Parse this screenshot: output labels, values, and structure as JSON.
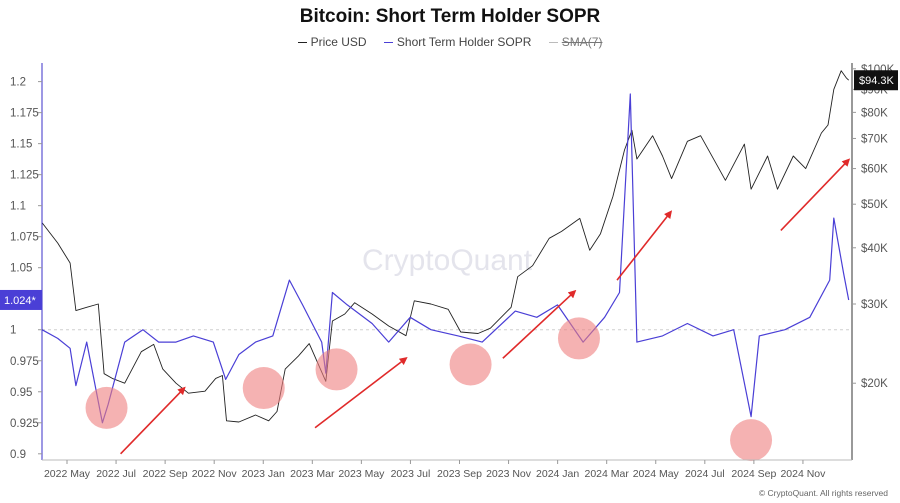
{
  "chart_data": {
    "type": "line",
    "title": "Bitcoin: Short Term Holder SOPR",
    "legend": [
      "Price USD",
      "Short Term Holder SOPR",
      "SMA(7)"
    ],
    "legend_placement": "top-center",
    "watermark": "CryptoQuant",
    "credit": "© CryptoQuant. All rights reserved",
    "x_ticks": [
      "2022 May",
      "2022 Jul",
      "2022 Sep",
      "2022 Nov",
      "2023 Jan",
      "2023 Mar",
      "2023 May",
      "2023 Jul",
      "2023 Sep",
      "2023 Nov",
      "2024 Jan",
      "2024 Mar",
      "2024 May",
      "2024 Jul",
      "2024 Sep",
      "2024 Nov"
    ],
    "x_range": [
      "2022-04-01",
      "2024-12-05"
    ],
    "y_left": {
      "ticks": [
        0.9,
        0.925,
        0.95,
        0.975,
        1,
        1.025,
        1.05,
        1.075,
        1.1,
        1.125,
        1.15,
        1.175,
        1.2
      ],
      "tick_labels": [
        "0.9",
        "0.925",
        "0.95",
        "0.975",
        "1",
        "1.025",
        "1.05",
        "1.075",
        "1.1",
        "1.125",
        "1.15",
        "1.175",
        "1.2"
      ],
      "range": [
        0.895,
        1.215
      ],
      "current_label": "1.024*"
    },
    "y_right": {
      "scale": "log",
      "ticks": [
        20000,
        30000,
        40000,
        50000,
        60000,
        70000,
        80000,
        90000,
        100000
      ],
      "tick_labels": [
        "$20K",
        "$30K",
        "$40K",
        "$50K",
        "$60K",
        "$70K",
        "$80K",
        "$90K",
        "$100K"
      ],
      "range": [
        13500,
        103000
      ],
      "current_label": "$94.3K"
    },
    "grid": false,
    "series": [
      {
        "name": "Price USD",
        "color": "#222222",
        "axis": "right",
        "points": [
          [
            "2022-04-01",
            45500
          ],
          [
            "2022-04-20",
            41000
          ],
          [
            "2022-05-05",
            37000
          ],
          [
            "2022-05-12",
            29000
          ],
          [
            "2022-05-25",
            29500
          ],
          [
            "2022-06-08",
            30000
          ],
          [
            "2022-06-15",
            21000
          ],
          [
            "2022-06-25",
            20500
          ],
          [
            "2022-07-10",
            20000
          ],
          [
            "2022-07-30",
            23500
          ],
          [
            "2022-08-14",
            24400
          ],
          [
            "2022-08-25",
            21500
          ],
          [
            "2022-09-10",
            20000
          ],
          [
            "2022-09-25",
            19000
          ],
          [
            "2022-10-15",
            19200
          ],
          [
            "2022-10-28",
            20500
          ],
          [
            "2022-11-05",
            20800
          ],
          [
            "2022-11-10",
            16500
          ],
          [
            "2022-11-25",
            16400
          ],
          [
            "2022-12-15",
            17000
          ],
          [
            "2022-12-31",
            16500
          ],
          [
            "2023-01-10",
            17300
          ],
          [
            "2023-01-20",
            21500
          ],
          [
            "2023-02-05",
            23000
          ],
          [
            "2023-02-18",
            24500
          ],
          [
            "2023-03-10",
            20200
          ],
          [
            "2023-03-18",
            27500
          ],
          [
            "2023-04-02",
            28500
          ],
          [
            "2023-04-14",
            30200
          ],
          [
            "2023-05-05",
            28500
          ],
          [
            "2023-05-25",
            26800
          ],
          [
            "2023-06-15",
            25500
          ],
          [
            "2023-06-25",
            30500
          ],
          [
            "2023-07-15",
            30000
          ],
          [
            "2023-08-05",
            29200
          ],
          [
            "2023-08-20",
            26000
          ],
          [
            "2023-09-10",
            25800
          ],
          [
            "2023-09-25",
            26500
          ],
          [
            "2023-10-20",
            29500
          ],
          [
            "2023-10-28",
            34500
          ],
          [
            "2023-11-15",
            36500
          ],
          [
            "2023-12-05",
            42000
          ],
          [
            "2023-12-20",
            43500
          ],
          [
            "2024-01-11",
            46500
          ],
          [
            "2024-01-23",
            39500
          ],
          [
            "2024-02-05",
            43000
          ],
          [
            "2024-02-20",
            52000
          ],
          [
            "2024-03-05",
            66000
          ],
          [
            "2024-03-14",
            73000
          ],
          [
            "2024-03-20",
            63000
          ],
          [
            "2024-04-08",
            71000
          ],
          [
            "2024-04-20",
            64000
          ],
          [
            "2024-05-01",
            57000
          ],
          [
            "2024-05-20",
            69000
          ],
          [
            "2024-06-05",
            71000
          ],
          [
            "2024-06-25",
            61000
          ],
          [
            "2024-07-05",
            56500
          ],
          [
            "2024-07-28",
            68000
          ],
          [
            "2024-08-05",
            54000
          ],
          [
            "2024-08-25",
            64000
          ],
          [
            "2024-09-06",
            54000
          ],
          [
            "2024-09-25",
            64000
          ],
          [
            "2024-10-10",
            60000
          ],
          [
            "2024-10-29",
            72000
          ],
          [
            "2024-11-06",
            75000
          ],
          [
            "2024-11-13",
            90000
          ],
          [
            "2024-11-22",
            99000
          ],
          [
            "2024-11-28",
            95500
          ],
          [
            "2024-12-01",
            94300
          ]
        ]
      },
      {
        "name": "Short Term Holder SOPR",
        "color": "#4a3fd6",
        "axis": "left",
        "points": [
          [
            "2022-04-01",
            1.0
          ],
          [
            "2022-04-20",
            0.993
          ],
          [
            "2022-05-05",
            0.985
          ],
          [
            "2022-05-12",
            0.955
          ],
          [
            "2022-05-25",
            0.99
          ],
          [
            "2022-06-13",
            0.925
          ],
          [
            "2022-06-20",
            0.94
          ],
          [
            "2022-07-10",
            0.99
          ],
          [
            "2022-08-01",
            1.0
          ],
          [
            "2022-08-20",
            0.99
          ],
          [
            "2022-09-10",
            0.99
          ],
          [
            "2022-10-01",
            0.995
          ],
          [
            "2022-10-25",
            0.99
          ],
          [
            "2022-11-09",
            0.96
          ],
          [
            "2022-11-25",
            0.98
          ],
          [
            "2022-12-15",
            0.99
          ],
          [
            "2023-01-05",
            0.995
          ],
          [
            "2023-01-25",
            1.04
          ],
          [
            "2023-02-10",
            1.02
          ],
          [
            "2023-03-05",
            0.99
          ],
          [
            "2023-03-10",
            0.965
          ],
          [
            "2023-03-18",
            1.03
          ],
          [
            "2023-04-05",
            1.02
          ],
          [
            "2023-05-05",
            1.005
          ],
          [
            "2023-05-25",
            0.99
          ],
          [
            "2023-06-20",
            1.01
          ],
          [
            "2023-07-15",
            1.0
          ],
          [
            "2023-08-17",
            0.995
          ],
          [
            "2023-09-15",
            0.99
          ],
          [
            "2023-10-25",
            1.015
          ],
          [
            "2023-11-20",
            1.01
          ],
          [
            "2023-12-15",
            1.02
          ],
          [
            "2024-01-15",
            0.99
          ],
          [
            "2024-02-10",
            1.01
          ],
          [
            "2024-02-28",
            1.03
          ],
          [
            "2024-03-12",
            1.19
          ],
          [
            "2024-03-20",
            0.99
          ],
          [
            "2024-04-20",
            0.995
          ],
          [
            "2024-05-20",
            1.005
          ],
          [
            "2024-06-20",
            0.995
          ],
          [
            "2024-07-15",
            1.0
          ],
          [
            "2024-08-05",
            0.93
          ],
          [
            "2024-08-15",
            0.995
          ],
          [
            "2024-09-15",
            1.0
          ],
          [
            "2024-10-15",
            1.01
          ],
          [
            "2024-11-08",
            1.04
          ],
          [
            "2024-11-13",
            1.09
          ],
          [
            "2024-11-25",
            1.045
          ],
          [
            "2024-12-01",
            1.024
          ]
        ]
      },
      {
        "name": "SMA(7)",
        "color": "#bbbbbb",
        "axis": "left",
        "style": "dashed",
        "points": []
      }
    ],
    "annotations": {
      "circles": [
        {
          "x": "2022-06-18",
          "y": 0.937,
          "color": "#ee7f7f"
        },
        {
          "x": "2022-12-25",
          "y": 0.953,
          "color": "#ee7f7f"
        },
        {
          "x": "2023-03-23",
          "y": 0.968,
          "color": "#ee7f7f"
        },
        {
          "x": "2023-09-01",
          "y": 0.972,
          "color": "#ee7f7f"
        },
        {
          "x": "2024-01-10",
          "y": 0.993,
          "color": "#ee7f7f"
        },
        {
          "x": "2024-08-05",
          "y": 0.911,
          "color": "#ee7f7f"
        }
      ],
      "arrows": [
        {
          "from": [
            "2022-07-05",
            0.9
          ],
          "to": [
            "2022-09-20",
            0.953
          ],
          "color": "#e02a2a"
        },
        {
          "from": [
            "2023-02-25",
            0.921
          ],
          "to": [
            "2023-06-15",
            0.977
          ],
          "color": "#e02a2a"
        },
        {
          "from": [
            "2023-10-10",
            0.977
          ],
          "to": [
            "2024-01-05",
            1.031
          ],
          "color": "#e02a2a"
        },
        {
          "from": [
            "2024-02-25",
            1.04
          ],
          "to": [
            "2024-04-30",
            1.095
          ],
          "color": "#e02a2a"
        },
        {
          "from": [
            "2024-09-10",
            1.08
          ],
          "to": [
            "2024-12-01",
            1.137
          ],
          "color": "#e02a2a"
        }
      ]
    }
  }
}
